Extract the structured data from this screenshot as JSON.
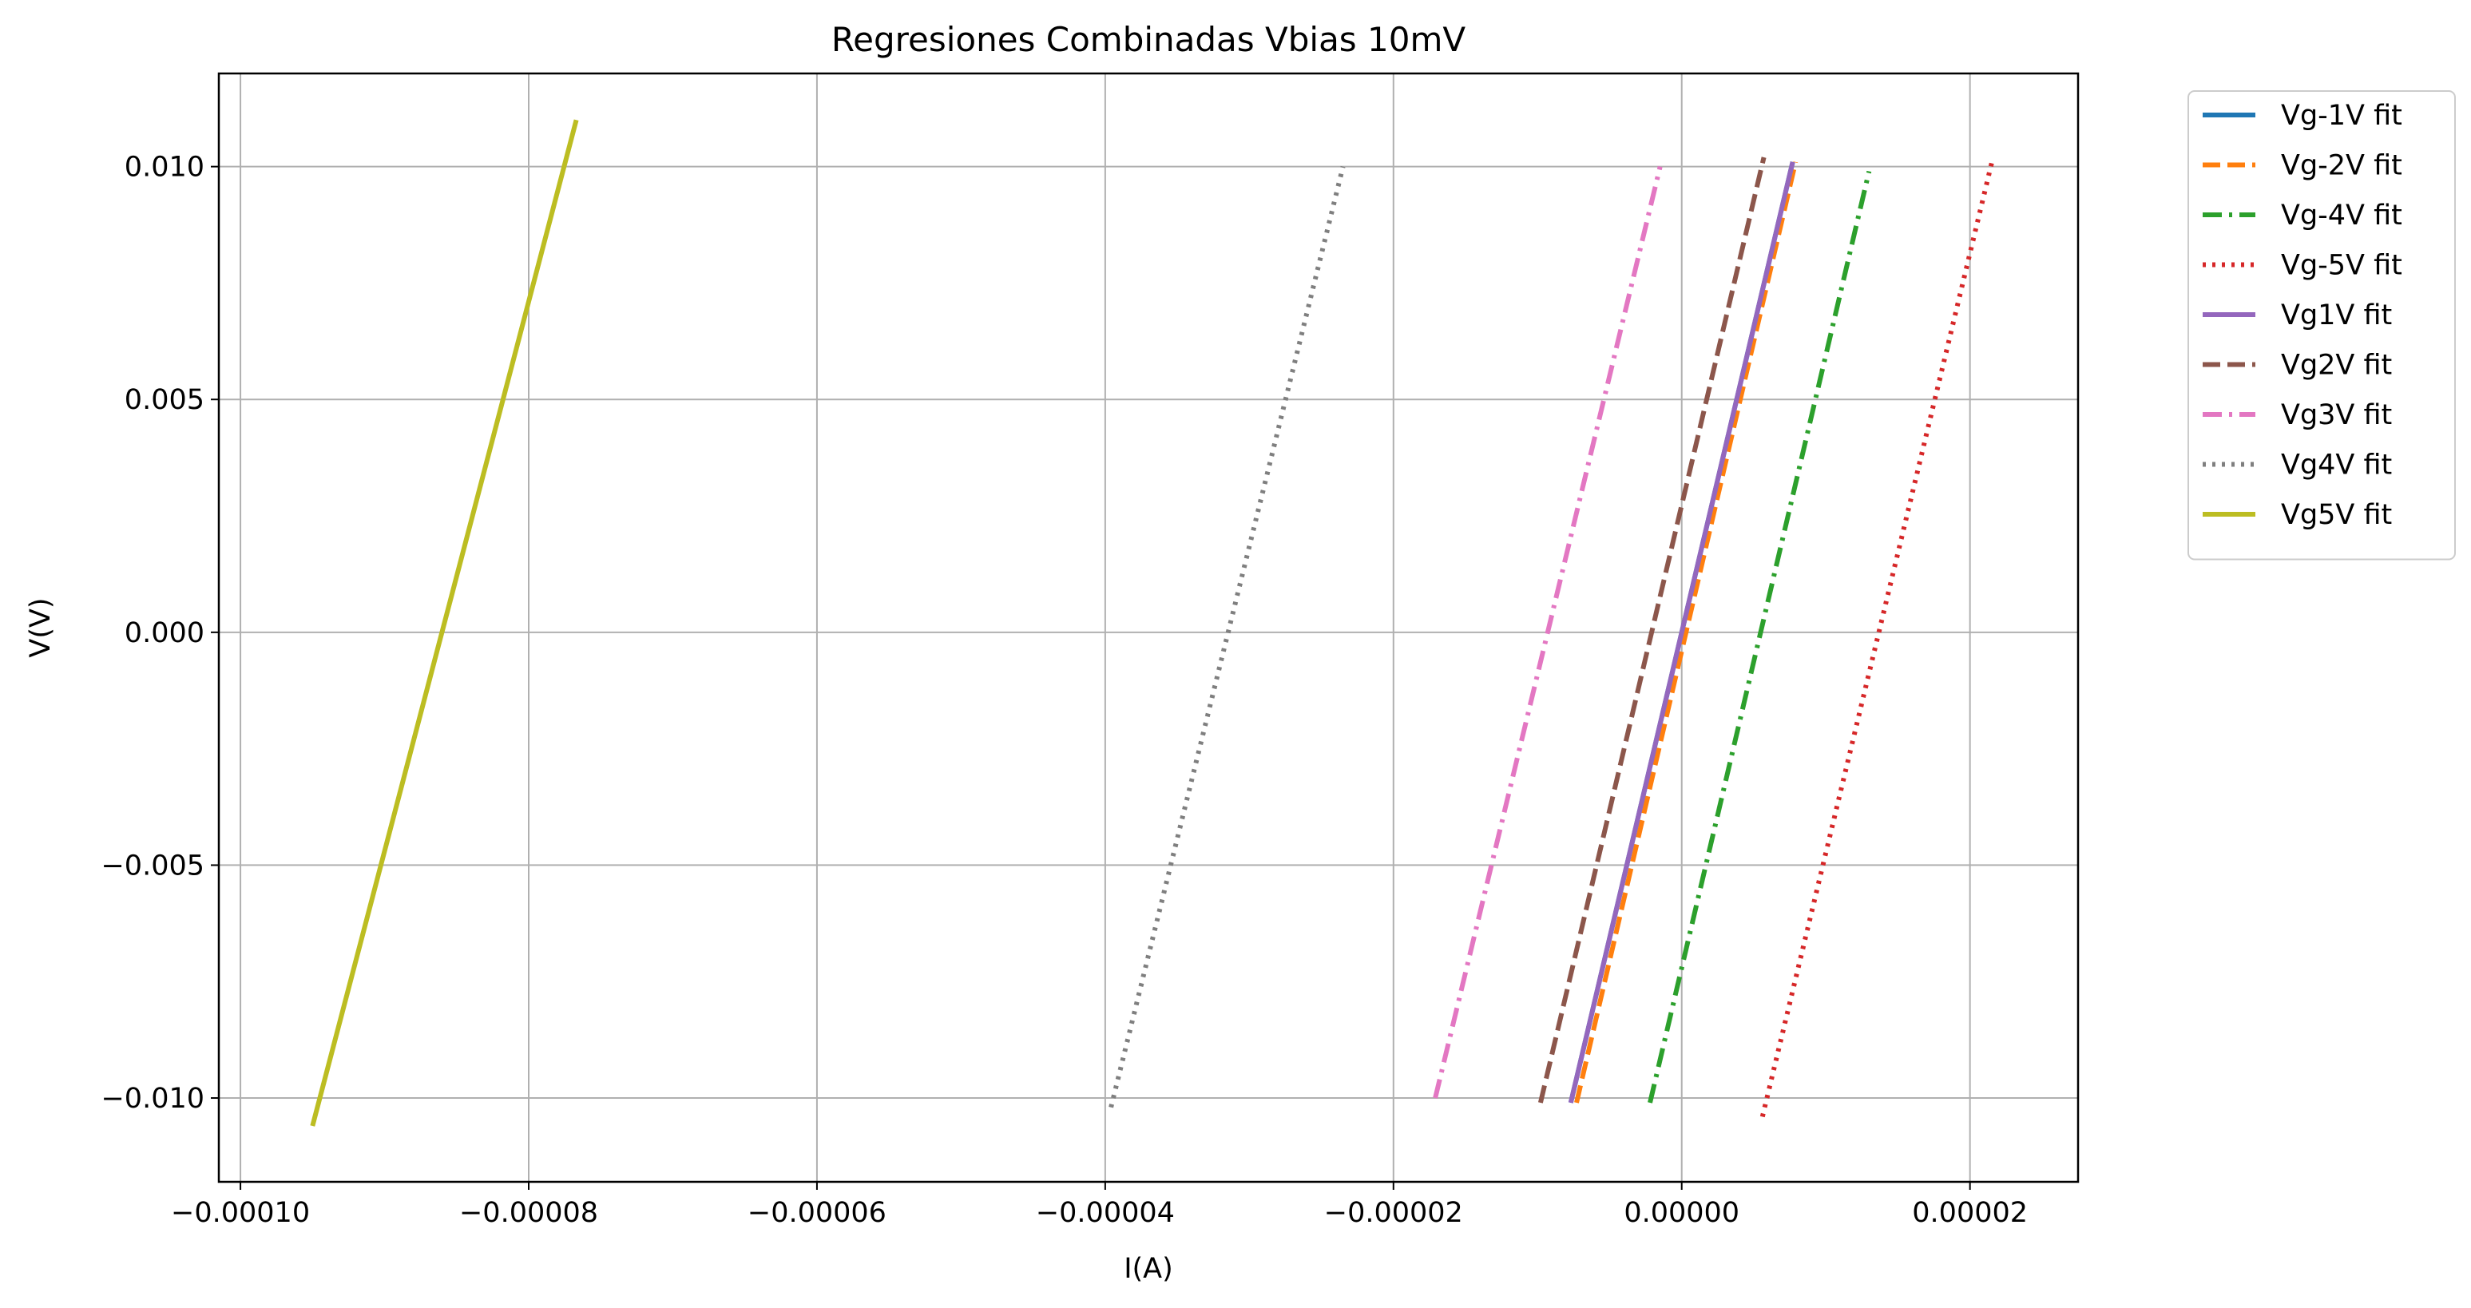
{
  "chart_data": {
    "type": "line",
    "title": "Regresiones Combinadas Vbias 10mV",
    "xlabel": "I(A)",
    "ylabel": "V(V)",
    "xlim": [
      -0.0001015,
      2.75e-05
    ],
    "ylim": [
      -0.0118,
      0.012
    ],
    "x_ticks": [
      -0.0001,
      -8e-05,
      -6e-05,
      -4e-05,
      -2e-05,
      0.0,
      2e-05
    ],
    "x_tick_labels": [
      "−0.00010",
      "−0.00008",
      "−0.00006",
      "−0.00004",
      "−0.00002",
      "0.00000",
      "0.00002"
    ],
    "y_ticks": [
      -0.01,
      -0.005,
      0.0,
      0.005,
      0.01
    ],
    "y_tick_labels": [
      "−0.010",
      "−0.005",
      "0.000",
      "0.005",
      "0.010"
    ],
    "grid": true,
    "legend_position": "outside-top-right",
    "series": [
      {
        "name": "Vg-1V fit",
        "color": "#1f77b4",
        "style": "solid",
        "x": [
          -7.7e-06,
          7.7e-06
        ],
        "y": [
          -0.0101,
          0.0101
        ]
      },
      {
        "name": "Vg-2V fit",
        "color": "#ff7f0e",
        "style": "dashed",
        "x": [
          -7.3e-06,
          7.9e-06
        ],
        "y": [
          -0.0101,
          0.0101
        ]
      },
      {
        "name": "Vg-4V fit",
        "color": "#2ca02c",
        "style": "dashdot",
        "x": [
          -2.2e-06,
          1.3e-05
        ],
        "y": [
          -0.0101,
          0.0099
        ]
      },
      {
        "name": "Vg-5V fit",
        "color": "#d62728",
        "style": "dotted",
        "x": [
          5.6e-06,
          2.16e-05
        ],
        "y": [
          -0.0104,
          0.0102
        ]
      },
      {
        "name": "Vg1V fit",
        "color": "#9467bd",
        "style": "solid",
        "x": [
          -7.7e-06,
          7.7e-06
        ],
        "y": [
          -0.0101,
          0.0101
        ]
      },
      {
        "name": "Vg2V fit",
        "color": "#8c564b",
        "style": "dashed",
        "x": [
          -9.8e-06,
          5.7e-06
        ],
        "y": [
          -0.0101,
          0.0102
        ]
      },
      {
        "name": "Vg3V fit",
        "color": "#e377c2",
        "style": "dashdot",
        "x": [
          -1.71e-05,
          -1.5e-06
        ],
        "y": [
          -0.01,
          0.01
        ]
      },
      {
        "name": "Vg4V fit",
        "color": "#7f7f7f",
        "style": "dotted",
        "x": [
          -3.96e-05,
          -2.35e-05
        ],
        "y": [
          -0.0102,
          0.01
        ]
      },
      {
        "name": "Vg5V fit",
        "color": "#bcbd22",
        "style": "solid",
        "x": [
          -9.5e-05,
          -7.67e-05
        ],
        "y": [
          -0.0106,
          0.011
        ]
      }
    ]
  }
}
